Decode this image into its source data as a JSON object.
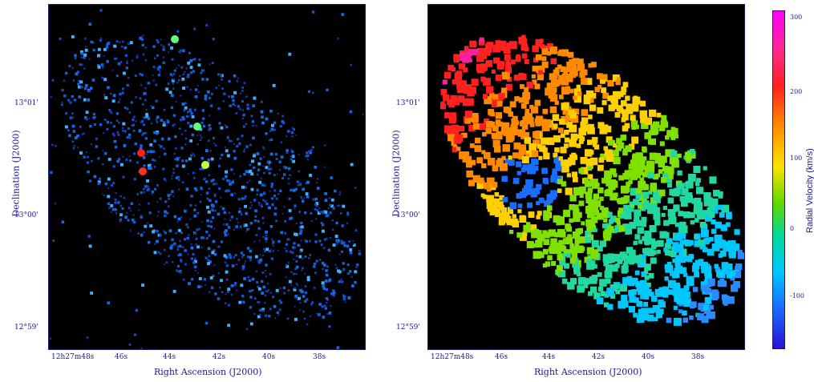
{
  "left_panel": {
    "y_axis_label": "Declination (J2000)",
    "x_axis_label": "Right Ascension (J2000)",
    "y_ticks": [
      "13°01'",
      "13°00'",
      "12°59'"
    ],
    "x_ticks": [
      "12h27m48s",
      "46s",
      "44s",
      "42s",
      "40s",
      "38s"
    ]
  },
  "right_panel": {
    "y_axis_label": "Declination (J2000)",
    "x_axis_label": "Right Ascension (J2000)",
    "y_ticks": [
      "13°01'",
      "13°00'",
      "12°59'"
    ],
    "x_ticks": [
      "12h27m48s",
      "46s",
      "44s",
      "42s",
      "40s",
      "38s"
    ]
  },
  "colorbar": {
    "label": "Radial Velocity (km/s)",
    "ticks": [
      "300",
      "200",
      "100",
      "0",
      "-100"
    ],
    "colors": [
      "#ff00ff",
      "#ff2020",
      "#ff8a00",
      "#ffe100",
      "#60d800",
      "#00d8a0",
      "#00c8ff",
      "#1a6cff",
      "#2a10d8"
    ]
  }
}
